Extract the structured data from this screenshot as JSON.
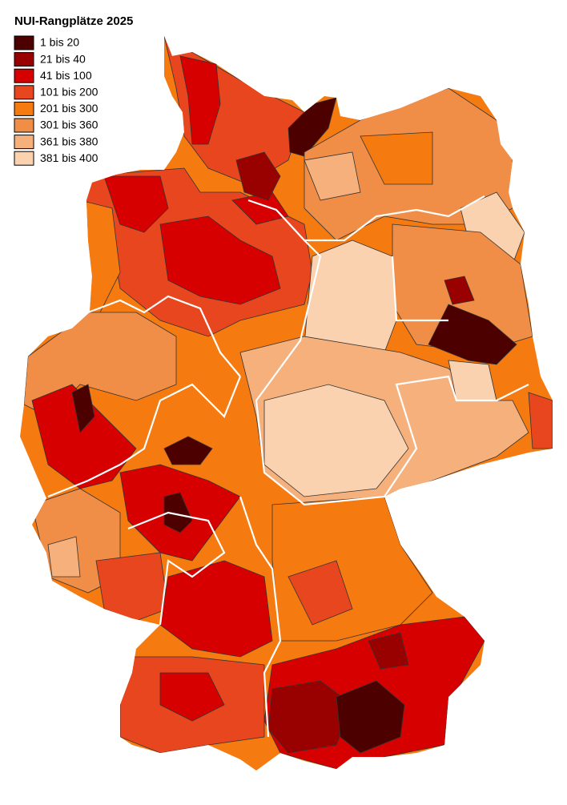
{
  "title": "NUI-Rangplätze 2025",
  "legend": {
    "items": [
      {
        "label": "1 bis 20",
        "color": "#4d0000"
      },
      {
        "label": "21 bis 40",
        "color": "#990000"
      },
      {
        "label": "41 bis 100",
        "color": "#d60000"
      },
      {
        "label": "101 bis 200",
        "color": "#e8461e"
      },
      {
        "label": "201 bis 300",
        "color": "#f57a10"
      },
      {
        "label": "301 bis 360",
        "color": "#f08e48"
      },
      {
        "label": "361 bis 380",
        "color": "#f5b07c"
      },
      {
        "label": "381 bis 400",
        "color": "#fad2b0"
      }
    ]
  }
}
